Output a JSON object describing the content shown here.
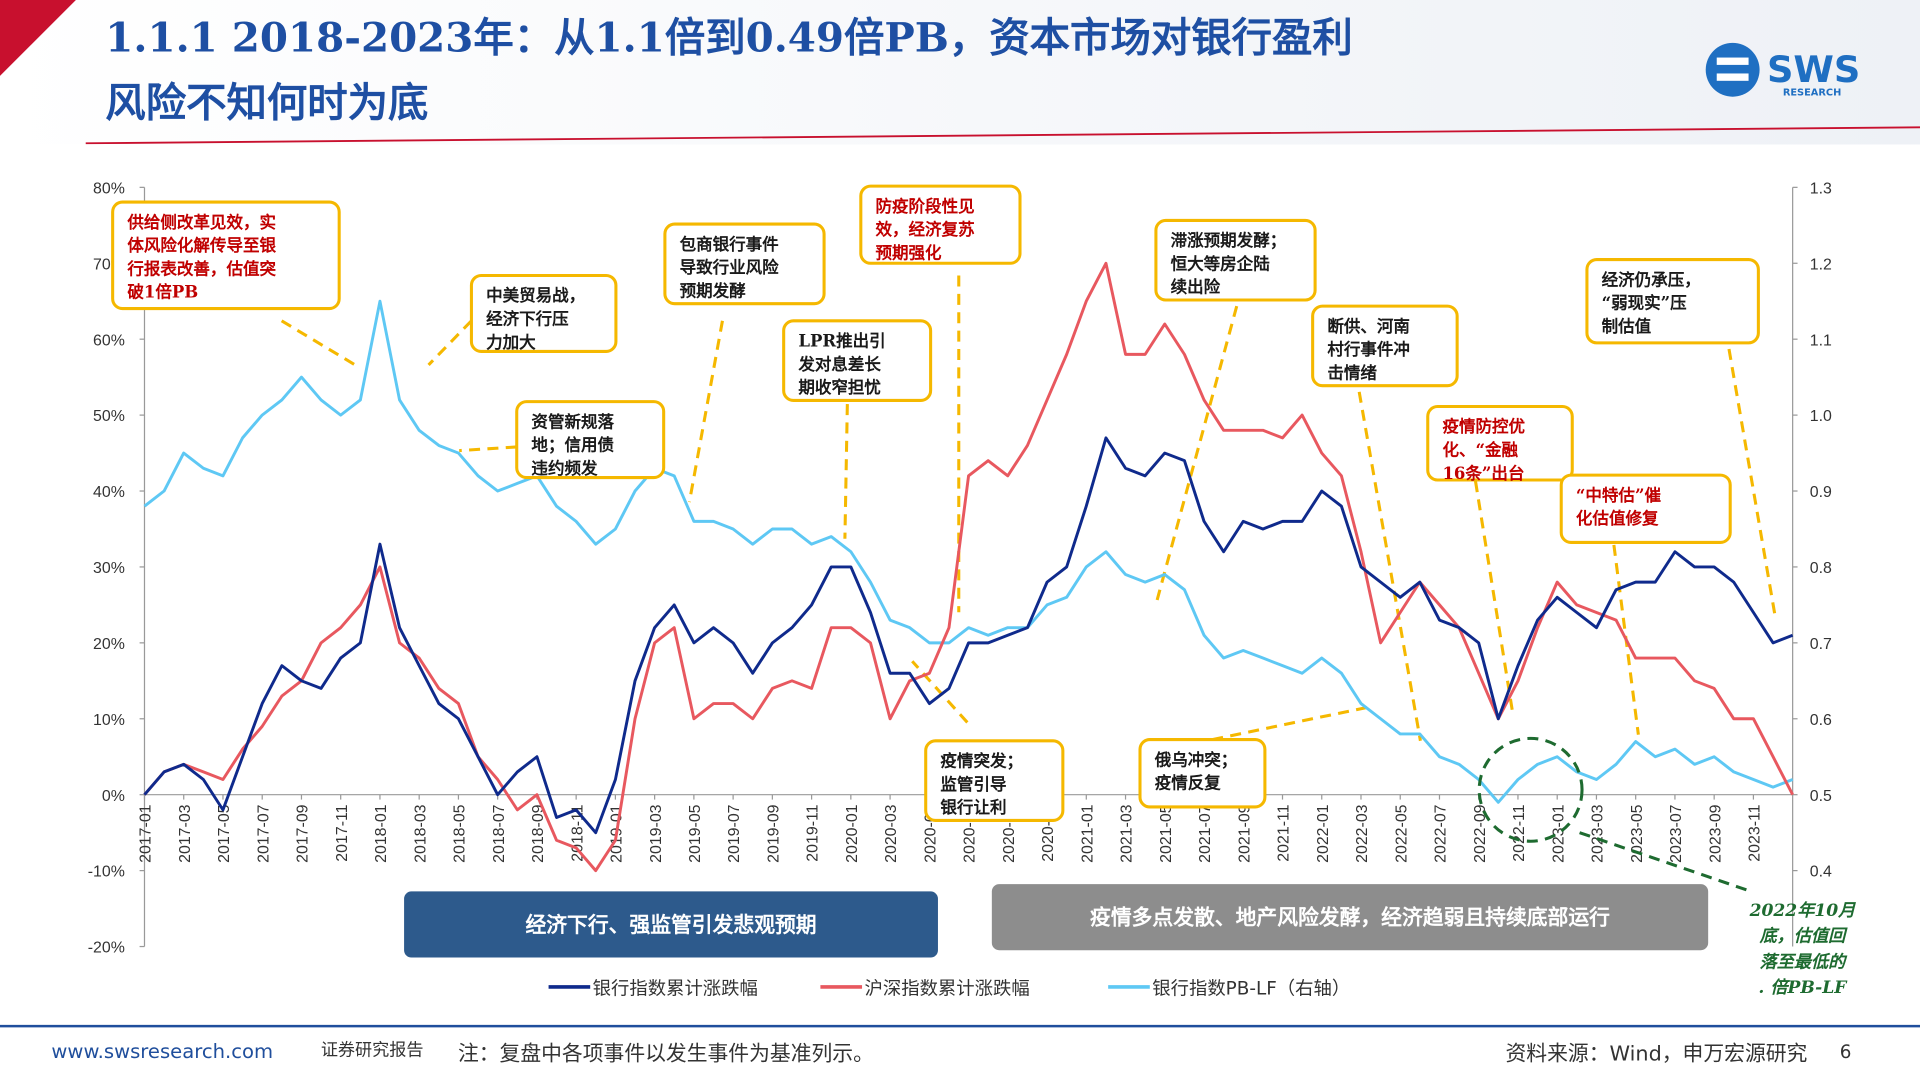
{
  "header": {
    "title_lines": [
      "1.1.1 2018-2023年：从1.1倍到0.49倍PB，资本市场对银行盈利",
      "风险不知何时为底"
    ],
    "logo": "SWS",
    "logo_sub": "RESEARCH"
  },
  "chart_data": {
    "type": "line",
    "x": [
      "2017-01",
      "2017-02",
      "2017-03",
      "2017-04",
      "2017-05",
      "2017-06",
      "2017-07",
      "2017-08",
      "2017-09",
      "2017-10",
      "2017-11",
      "2017-12",
      "2018-01",
      "2018-02",
      "2018-03",
      "2018-04",
      "2018-05",
      "2018-06",
      "2018-07",
      "2018-08",
      "2018-09",
      "2018-10",
      "2018-11",
      "2018-12",
      "2019-01",
      "2019-02",
      "2019-03",
      "2019-04",
      "2019-05",
      "2019-06",
      "2019-07",
      "2019-08",
      "2019-09",
      "2019-10",
      "2019-11",
      "2019-12",
      "2020-01",
      "2020-02",
      "2020-03",
      "2020-04",
      "2020-05",
      "2020-06",
      "2020-07",
      "2020-08",
      "2020-09",
      "2020-10",
      "2020-11",
      "2020-12",
      "2021-01",
      "2021-02",
      "2021-03",
      "2021-04",
      "2021-05",
      "2021-06",
      "2021-07",
      "2021-08",
      "2021-09",
      "2021-10",
      "2021-11",
      "2021-12",
      "2022-01",
      "2022-02",
      "2022-03",
      "2022-04",
      "2022-05",
      "2022-06",
      "2022-07",
      "2022-08",
      "2022-09",
      "2022-10",
      "2022-11",
      "2022-12",
      "2023-01",
      "2023-02",
      "2023-03",
      "2023-04",
      "2023-05",
      "2023-06",
      "2023-07",
      "2023-08",
      "2023-09",
      "2023-10",
      "2023-11",
      "2023-12",
      "2024-01"
    ],
    "xticks": [
      "2017-01",
      "2017-03",
      "2017-05",
      "2017-07",
      "2017-09",
      "2017-11",
      "2018-01",
      "2018-03",
      "2018-05",
      "2018-07",
      "2018-09",
      "2018-11",
      "2019-01",
      "2019-03",
      "2019-05",
      "2019-07",
      "2019-09",
      "2019-11",
      "2020-01",
      "2020-03",
      "2020-05",
      "2020-07",
      "2020-09",
      "2020-11",
      "2021-01",
      "2021-03",
      "2021-05",
      "2021-07",
      "2021-09",
      "2021-11",
      "2022-01",
      "2022-03",
      "2022-05",
      "2022-07",
      "2022-09",
      "2022-11",
      "2023-01",
      "2023-03",
      "2023-05",
      "2023-07",
      "2023-09",
      "2023-11"
    ],
    "series": [
      {
        "name": "银行指数累计涨跌幅",
        "color": "#0f2a8c",
        "values": [
          0,
          3,
          4,
          2,
          -2,
          5,
          12,
          17,
          15,
          14,
          18,
          20,
          33,
          22,
          17,
          12,
          10,
          5,
          0,
          3,
          5,
          -3,
          -2,
          -5,
          2,
          15,
          22,
          25,
          20,
          22,
          20,
          16,
          20,
          22,
          25,
          30,
          30,
          24,
          16,
          16,
          12,
          14,
          20,
          20,
          21,
          22,
          28,
          30,
          38,
          47,
          43,
          42,
          45,
          44,
          36,
          32,
          36,
          35,
          36,
          36,
          40,
          38,
          30,
          28,
          26,
          28,
          23,
          22,
          20,
          10,
          17,
          23,
          26,
          24,
          22,
          27,
          28,
          28,
          32,
          30,
          30,
          28,
          24,
          20,
          21
        ]
      },
      {
        "name": "沪深指数累计涨跌幅",
        "color": "#e8585f",
        "values": [
          0,
          3,
          4,
          3,
          2,
          6,
          9,
          13,
          15,
          20,
          22,
          25,
          30,
          20,
          18,
          14,
          12,
          5,
          2,
          -2,
          0,
          -6,
          -7,
          -10,
          -6,
          10,
          20,
          22,
          10,
          12,
          12,
          10,
          14,
          15,
          14,
          22,
          22,
          20,
          10,
          15,
          16,
          22,
          42,
          44,
          42,
          46,
          52,
          58,
          65,
          70,
          58,
          58,
          62,
          58,
          52,
          48,
          48,
          48,
          47,
          50,
          45,
          42,
          32,
          20,
          24,
          28,
          25,
          22,
          16,
          10,
          15,
          22,
          28,
          25,
          24,
          23,
          18,
          18,
          18,
          15,
          14,
          10,
          10,
          5,
          0
        ]
      },
      {
        "name": "银行指数PB-LF（右轴）",
        "color": "#5ec8f4",
        "axis": "y2",
        "values": [
          0.88,
          0.9,
          0.95,
          0.93,
          0.92,
          0.97,
          1.0,
          1.02,
          1.05,
          1.02,
          1.0,
          1.02,
          1.15,
          1.02,
          0.98,
          0.96,
          0.95,
          0.92,
          0.9,
          0.91,
          0.92,
          0.88,
          0.86,
          0.83,
          0.85,
          0.9,
          0.93,
          0.92,
          0.86,
          0.86,
          0.85,
          0.83,
          0.85,
          0.85,
          0.83,
          0.84,
          0.82,
          0.78,
          0.73,
          0.72,
          0.7,
          0.7,
          0.72,
          0.71,
          0.72,
          0.72,
          0.75,
          0.76,
          0.8,
          0.82,
          0.79,
          0.78,
          0.79,
          0.77,
          0.71,
          0.68,
          0.69,
          0.68,
          0.67,
          0.66,
          0.68,
          0.66,
          0.62,
          0.6,
          0.58,
          0.58,
          0.55,
          0.54,
          0.52,
          0.49,
          0.52,
          0.54,
          0.55,
          0.53,
          0.52,
          0.54,
          0.57,
          0.55,
          0.56,
          0.54,
          0.55,
          0.53,
          0.52,
          0.51,
          0.52
        ]
      }
    ],
    "ylim": [
      -20,
      80
    ],
    "yticks": [
      {
        "value": -20,
        "label": "-20%"
      },
      {
        "value": -10,
        "label": "-10%"
      },
      {
        "value": 0,
        "label": "0%"
      },
      {
        "value": 10,
        "label": "10%"
      },
      {
        "value": 20,
        "label": "20%"
      },
      {
        "value": 30,
        "label": "30%"
      },
      {
        "value": 40,
        "label": "40%"
      },
      {
        "value": 50,
        "label": "50%"
      },
      {
        "value": 60,
        "label": "60%"
      },
      {
        "value": 70,
        "label": "70%"
      },
      {
        "value": 80,
        "label": "80%"
      }
    ],
    "y2lim": [
      0.3,
      1.3
    ],
    "y2ticks": [
      0.4,
      0.5,
      0.6,
      0.7,
      0.8,
      0.9,
      {
        "value": 1,
        "label": "1.0"
      },
      1.1,
      1.2,
      1.3
    ],
    "annotations": [
      {
        "lines": [
          "供给侧改革见效，实",
          "体风险化解传导至银",
          "行报表改善，估值突",
          "破1倍PB"
        ],
        "color": "#c00000"
      },
      {
        "lines": [
          "中美贸易战，",
          "经济下行压",
          "力加大"
        ],
        "color": "#1a1a1a"
      },
      {
        "lines": [
          "资管新规落",
          "地；信用债",
          "违约频发"
        ],
        "color": "#1a1a1a"
      },
      {
        "lines": [
          "包商银行事件",
          "导致行业风险",
          "预期发酵"
        ],
        "color": "#1a1a1a"
      },
      {
        "lines": [
          "LPR推出引",
          "发对息差长",
          "期收窄担忧"
        ],
        "color": "#1a1a1a"
      },
      {
        "lines": [
          "防疫阶段性见",
          "效，经济复苏",
          "预期强化"
        ],
        "color": "#c00000"
      },
      {
        "lines": [
          "疫情突发；",
          "监管引导",
          "银行让利"
        ],
        "color": "#1a1a1a"
      },
      {
        "lines": [
          "滞涨预期发酵；",
          "恒大等房企陆",
          "续出险"
        ],
        "color": "#1a1a1a"
      },
      {
        "lines": [
          "俄乌冲突；",
          "疫情反复"
        ],
        "color": "#1a1a1a"
      },
      {
        "lines": [
          "断供、河南",
          "村行事件冲",
          "击情绪"
        ],
        "color": "#1a1a1a"
      },
      {
        "lines": [
          "疫情防控优",
          "化、“金融",
          "16条”出台"
        ],
        "color": "#c00000"
      },
      {
        "lines": [
          "“中特估”催",
          "化估值修复"
        ],
        "color": "#c00000"
      },
      {
        "lines": [
          "经济仍承压，",
          "“弱现实”压",
          "制估值"
        ],
        "color": "#1a1a1a"
      }
    ],
    "banners": [
      "经济下行、强监管引发悲观预期",
      "疫情多点发散、地产风险发酵，经济趋弱且持续底部运行"
    ],
    "callout_lines": [
      "2022年10月",
      "底，估值回",
      "落至最低的",
      ". 倍PB-LF"
    ]
  },
  "footer": {
    "site": "www.swsresearch.com",
    "label": "证券研究报告",
    "note": "注：复盘中各项事件以发生事件为基准列示。",
    "source": "资料来源：Wind，申万宏源研究",
    "page": "6"
  }
}
